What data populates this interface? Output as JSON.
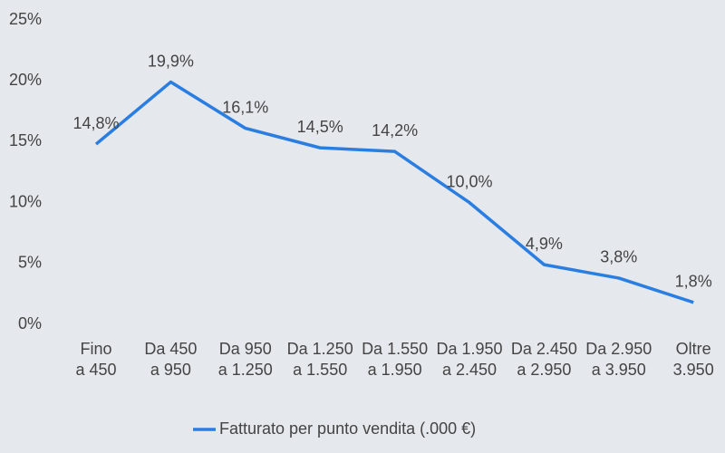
{
  "chart_data": {
    "type": "line",
    "categories": [
      "Fino a 450",
      "Da 450 a 950",
      "Da 950 a 1.250",
      "Da 1.250 a 1.550",
      "Da 1.550 a 1.950",
      "Da 1.950 a 2.450",
      "Da 2.450 a 2.950",
      "Da 2.950 a 3.950",
      "Oltre 3.950"
    ],
    "series": [
      {
        "name": "Fatturato per punto vendita (.000 €)",
        "color": "#2a7de1",
        "values": [
          14.8,
          19.9,
          16.1,
          14.5,
          14.2,
          10.0,
          4.9,
          3.8,
          1.8
        ],
        "value_labels": [
          "14,8%",
          "19,9%",
          "16,1%",
          "14,5%",
          "14,2%",
          "10,0%",
          "4,9%",
          "3,8%",
          "1,8%"
        ]
      }
    ],
    "ylim": [
      0,
      25
    ],
    "yticks": [
      {
        "value": 0,
        "label": "0%"
      },
      {
        "value": 5,
        "label": "5%"
      },
      {
        "value": 10,
        "label": "10%"
      },
      {
        "value": 15,
        "label": "15%"
      },
      {
        "value": 20,
        "label": "20%"
      },
      {
        "value": 25,
        "label": "25%"
      }
    ],
    "grid": false,
    "legend": "bottom"
  }
}
